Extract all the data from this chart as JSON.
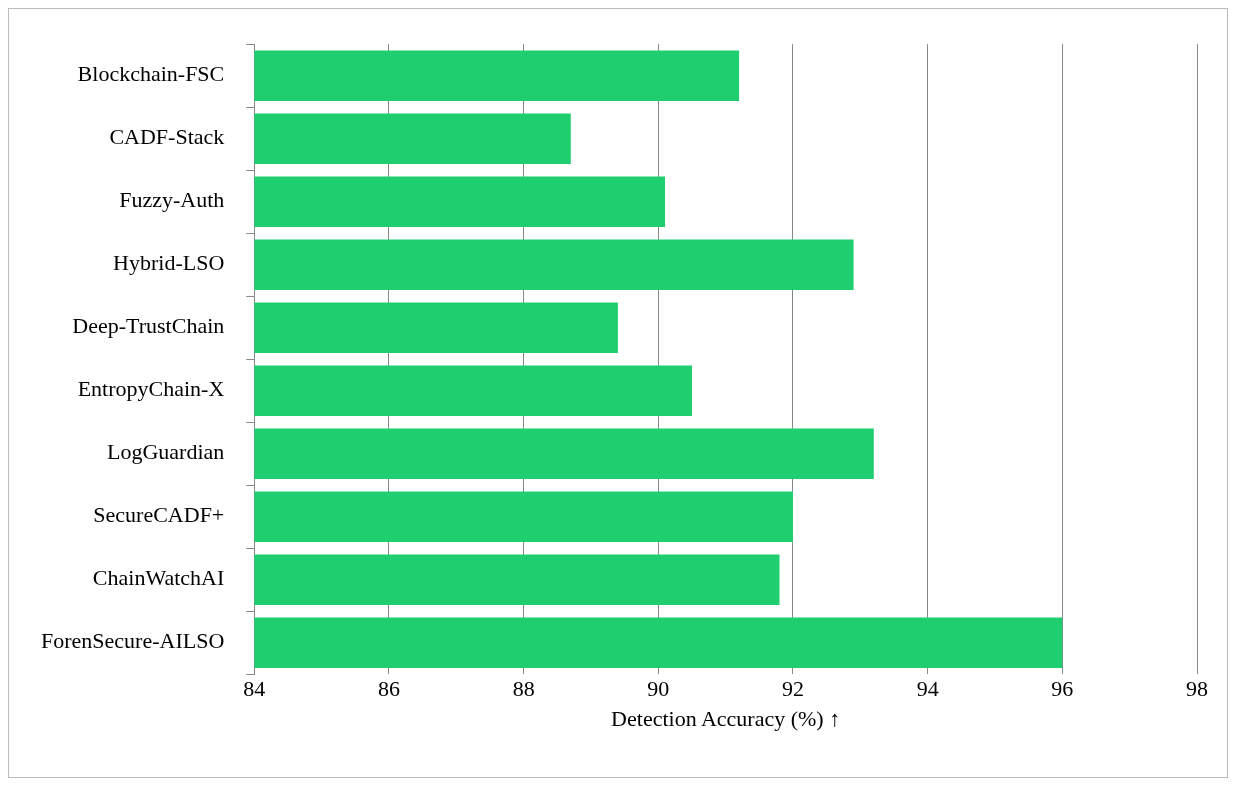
{
  "chart_data": {
    "type": "bar",
    "orientation": "horizontal",
    "xlabel": "Detection Accuracy (%) ↑",
    "categories": [
      "Blockchain-FSC",
      "CADF-Stack",
      "Fuzzy-Auth",
      "Hybrid-LSO",
      "Deep-TrustChain",
      "EntropyChain-X",
      "LogGuardian",
      "SecureCADF+",
      "ChainWatchAI",
      "ForenSecure-AILSO"
    ],
    "values": [
      91.2,
      88.7,
      90.1,
      92.9,
      89.4,
      90.5,
      93.2,
      92.0,
      91.8,
      96.0
    ],
    "color": "#1fcf6f",
    "xlim": [
      84,
      98
    ],
    "xticks": [
      84,
      86,
      88,
      90,
      92,
      94,
      96,
      98
    ],
    "grid": "x"
  }
}
